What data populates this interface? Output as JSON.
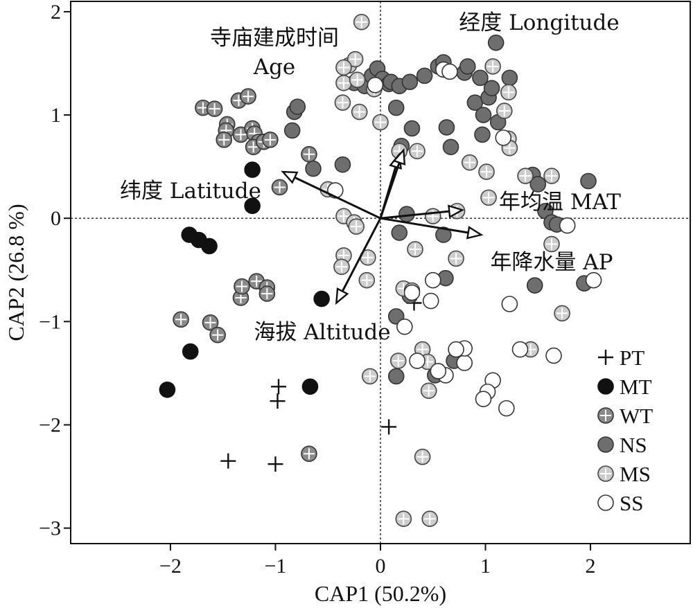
{
  "chart_data": {
    "type": "scatter",
    "xlabel": "CAP1 (50.2%)",
    "ylabel": "CAP2 (26.8 %)",
    "xlim": [
      -2.95,
      2.95
    ],
    "ylim": [
      -3.15,
      2.1
    ],
    "xticks": [
      -2,
      -1,
      0,
      1,
      2
    ],
    "yticks": [
      -3,
      -2,
      -1,
      0,
      1,
      2
    ],
    "xtick_labels": [
      "−2",
      "−1",
      "0",
      "1",
      "2"
    ],
    "ytick_labels": [
      "−3",
      "−2",
      "−1",
      "0",
      "1",
      "2"
    ],
    "reference_lines": {
      "x": 0,
      "y": 0,
      "style": "dotted"
    },
    "legend_position": "bottom-right",
    "vectors": [
      {
        "label": "寺庙建成时间 Age",
        "label_lines": [
          "寺庙建成时间",
          "Age"
        ],
        "x": 0.18,
        "y": 0.62
      },
      {
        "label": "经度 Longitude",
        "label_lines": [
          "经度 Longitude"
        ],
        "x": 0.22,
        "y": 0.66
      },
      {
        "label": "纬度 Latitude",
        "label_lines": [
          "纬度 Latitude"
        ],
        "x": -0.93,
        "y": 0.45
      },
      {
        "label": "年均温 MAT",
        "label_lines": [
          "年均温 MAT"
        ],
        "x": 0.78,
        "y": 0.08
      },
      {
        "label": "年降水量 AP",
        "label_lines": [
          "年降水量 AP"
        ],
        "x": 0.96,
        "y": -0.16
      },
      {
        "label": "海拔 Altitude",
        "label_lines": [
          "海拔 Altitude"
        ],
        "x": -0.42,
        "y": -0.82
      }
    ],
    "series": [
      {
        "name": "PT",
        "marker": "plus",
        "fill": "none",
        "stroke": "#111111",
        "points": [
          [
            -1.45,
            -2.35
          ],
          [
            -1.0,
            -2.38
          ],
          [
            -0.97,
            -1.63
          ],
          [
            -0.98,
            -1.77
          ],
          [
            0.08,
            -2.02
          ],
          [
            0.32,
            -0.82
          ],
          [
            0.52,
            -1.45
          ]
        ]
      },
      {
        "name": "MT",
        "marker": "circle",
        "fill": "#111111",
        "stroke": "#111111",
        "points": [
          [
            -2.03,
            -1.66
          ],
          [
            -1.81,
            -1.29
          ],
          [
            -1.82,
            -0.16
          ],
          [
            -1.73,
            -0.21
          ],
          [
            -1.63,
            -0.27
          ],
          [
            -1.22,
            0.47
          ],
          [
            -1.22,
            0.12
          ],
          [
            -0.67,
            -1.63
          ],
          [
            -0.56,
            -0.78
          ]
        ]
      },
      {
        "name": "WT",
        "marker": "circle-plus",
        "fill": "#8a8a8a",
        "stroke": "#333333",
        "points": [
          [
            -1.9,
            -0.98
          ],
          [
            -1.62,
            -1.01
          ],
          [
            -1.55,
            -1.13
          ],
          [
            -1.33,
            -0.77
          ],
          [
            -1.32,
            -0.66
          ],
          [
            -1.18,
            -0.61
          ],
          [
            -1.08,
            -0.67
          ],
          [
            -1.08,
            -0.73
          ],
          [
            -0.96,
            0.3
          ],
          [
            -0.68,
            -2.28
          ],
          [
            -1.69,
            1.07
          ],
          [
            -1.58,
            1.06
          ],
          [
            -1.46,
            0.91
          ],
          [
            -1.47,
            0.85
          ],
          [
            -1.49,
            0.76
          ],
          [
            -1.35,
            1.14
          ],
          [
            -1.26,
            1.18
          ],
          [
            -1.33,
            0.81
          ],
          [
            -1.22,
            0.87
          ],
          [
            -1.2,
            0.82
          ],
          [
            -1.16,
            0.74
          ],
          [
            -1.21,
            0.69
          ],
          [
            -1.11,
            0.74
          ],
          [
            -1.05,
            0.76
          ],
          [
            -0.68,
            0.62
          ]
        ]
      },
      {
        "name": "NS",
        "marker": "circle",
        "fill": "#6e6e6e",
        "stroke": "#333333",
        "points": [
          [
            -0.84,
            0.85
          ],
          [
            -0.82,
            1.03
          ],
          [
            -0.79,
            1.08
          ],
          [
            -0.64,
            0.48
          ],
          [
            -0.36,
            0.52
          ],
          [
            -0.25,
            1.31
          ],
          [
            -0.15,
            1.28
          ],
          [
            -0.08,
            1.38
          ],
          [
            -0.03,
            1.45
          ],
          [
            0.02,
            1.35
          ],
          [
            0.08,
            1.3
          ],
          [
            0.15,
            1.07
          ],
          [
            0.1,
            1.32
          ],
          [
            0.18,
            1.28
          ],
          [
            0.28,
            1.32
          ],
          [
            0.2,
            0.7
          ],
          [
            0.3,
            0.87
          ],
          [
            0.42,
            1.38
          ],
          [
            0.55,
            1.47
          ],
          [
            0.6,
            1.51
          ],
          [
            0.63,
            0.88
          ],
          [
            0.67,
            0.69
          ],
          [
            0.8,
            1.41
          ],
          [
            0.83,
            1.47
          ],
          [
            0.9,
            1.12
          ],
          [
            0.95,
            1.36
          ],
          [
            0.98,
            1.0
          ],
          [
            0.97,
            0.81
          ],
          [
            1.03,
            1.17
          ],
          [
            1.06,
            1.26
          ],
          [
            1.1,
            1.7
          ],
          [
            1.12,
            0.93
          ],
          [
            1.23,
            1.36
          ],
          [
            1.45,
            0.42
          ],
          [
            1.5,
            0.33
          ],
          [
            1.57,
            0.07
          ],
          [
            1.63,
            -0.04
          ],
          [
            1.68,
            -0.06
          ],
          [
            1.98,
            0.36
          ],
          [
            1.94,
            -0.63
          ],
          [
            1.47,
            -0.65
          ],
          [
            0.62,
            -0.58
          ],
          [
            0.52,
            -1.52
          ],
          [
            0.7,
            -1.38
          ],
          [
            0.18,
            -0.14
          ],
          [
            0.25,
            0.04
          ],
          [
            0.6,
            -0.16
          ],
          [
            0.28,
            -0.75
          ],
          [
            0.15,
            -0.95
          ],
          [
            0.15,
            -1.53
          ]
        ]
      },
      {
        "name": "MS",
        "marker": "circle-plus",
        "fill": "#cccccc",
        "stroke": "#444444",
        "points": [
          [
            -0.18,
            1.9
          ],
          [
            -0.3,
            1.48
          ],
          [
            -0.24,
            1.54
          ],
          [
            -0.35,
            1.46
          ],
          [
            -0.35,
            1.31
          ],
          [
            -0.22,
            1.34
          ],
          [
            -0.36,
            1.12
          ],
          [
            -0.2,
            1.03
          ],
          [
            -0.06,
            1.25
          ],
          [
            0.0,
            0.93
          ],
          [
            0.18,
            0.65
          ],
          [
            0.35,
            0.65
          ],
          [
            -0.5,
            0.28
          ],
          [
            -0.35,
            0.02
          ],
          [
            -0.25,
            -0.04
          ],
          [
            -0.23,
            -0.08
          ],
          [
            -0.35,
            -0.36
          ],
          [
            -0.37,
            -0.47
          ],
          [
            -0.12,
            -0.38
          ],
          [
            -0.13,
            -0.6
          ],
          [
            -0.1,
            -1.53
          ],
          [
            0.22,
            -0.68
          ],
          [
            0.33,
            -0.3
          ],
          [
            0.3,
            -0.7
          ],
          [
            0.17,
            -1.38
          ],
          [
            0.4,
            -1.27
          ],
          [
            0.45,
            -1.39
          ],
          [
            0.46,
            -1.67
          ],
          [
            0.4,
            -2.31
          ],
          [
            0.22,
            -2.91
          ],
          [
            0.47,
            -2.91
          ],
          [
            0.72,
            -0.39
          ],
          [
            0.85,
            0.54
          ],
          [
            1.01,
            0.45
          ],
          [
            1.07,
            1.47
          ],
          [
            1.18,
            1.04
          ],
          [
            1.22,
            1.22
          ],
          [
            1.22,
            0.77
          ],
          [
            1.23,
            0.68
          ],
          [
            1.38,
            0.41
          ],
          [
            1.63,
            0.41
          ],
          [
            1.03,
            0.2
          ],
          [
            1.63,
            -0.25
          ],
          [
            1.73,
            -0.92
          ],
          [
            1.43,
            -1.27
          ],
          [
            0.73,
            0.07
          ],
          [
            0.5,
            0.02
          ]
        ]
      },
      {
        "name": "SS",
        "marker": "circle",
        "fill": "#ffffff",
        "stroke": "#333333",
        "points": [
          [
            1.17,
            0.78
          ],
          [
            1.78,
            -0.07
          ],
          [
            2.03,
            -0.6
          ],
          [
            1.23,
            -0.83
          ],
          [
            1.65,
            -1.33
          ],
          [
            1.33,
            -1.27
          ],
          [
            1.2,
            -1.84
          ],
          [
            1.07,
            -1.57
          ],
          [
            1.02,
            -1.68
          ],
          [
            0.98,
            -1.75
          ],
          [
            0.8,
            -1.4
          ],
          [
            0.8,
            -1.26
          ],
          [
            0.62,
            -1.52
          ],
          [
            0.48,
            -0.8
          ],
          [
            0.5,
            -0.6
          ],
          [
            0.3,
            -0.72
          ],
          [
            0.23,
            -1.05
          ],
          [
            0.35,
            -1.38
          ],
          [
            0.55,
            -1.48
          ],
          [
            0.72,
            -1.27
          ],
          [
            0.6,
            1.44
          ],
          [
            0.66,
            1.42
          ],
          [
            -0.05,
            1.29
          ],
          [
            -0.43,
            0.27
          ]
        ]
      }
    ]
  }
}
